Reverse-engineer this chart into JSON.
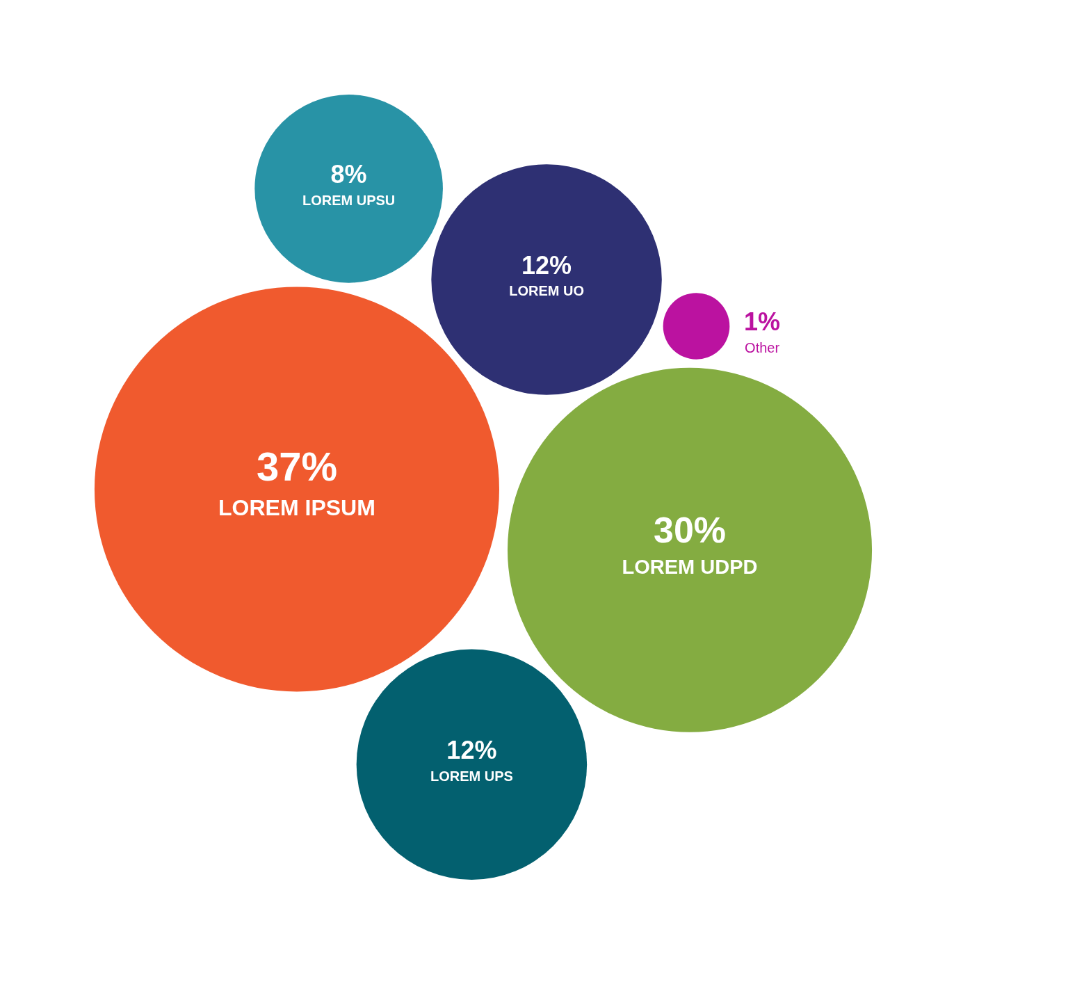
{
  "chart_data": {
    "type": "other",
    "categories": [
      "LOREM UPSU",
      "LOREM UO",
      "LOREM IPSUM",
      "LOREM UDPD",
      "Other",
      "LOREM UPS"
    ],
    "values": [
      8,
      12,
      37,
      30,
      1,
      12
    ],
    "value_labels": [
      "8%",
      "12%",
      "37%",
      "30%",
      "1%",
      "12%"
    ],
    "colors": [
      "#2893a6",
      "#2e3073",
      "#f05a2e",
      "#84ac41",
      "#bb12a0",
      "#03606f"
    ]
  }
}
